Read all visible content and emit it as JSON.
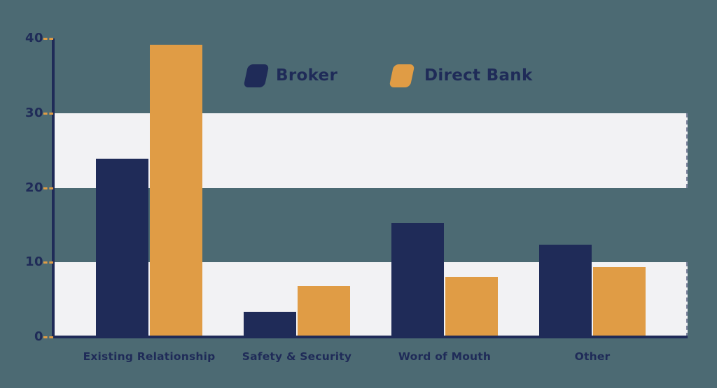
{
  "colors": {
    "background": "#4C6A73",
    "navy": "#1F2B58",
    "orange": "#E09C45",
    "stripe": "#F2F2F4",
    "label_text": "#1F2B58",
    "tick_dash": "#E09C45"
  },
  "legend": {
    "items": [
      {
        "label": "Broker",
        "color": "#1F2B58"
      },
      {
        "label": "Direct Bank",
        "color": "#E09C45"
      }
    ]
  },
  "chart_data": {
    "type": "bar",
    "title": "",
    "xlabel": "",
    "ylabel": "",
    "categories": [
      "Existing Relationship",
      "Safety & Security",
      "Word of Mouth",
      "Other"
    ],
    "series": [
      {
        "name": "Broker",
        "color": "#1F2B58",
        "values": [
          23.9,
          3.4,
          15.3,
          12.4
        ]
      },
      {
        "name": "Direct Bank",
        "color": "#E09C45",
        "values": [
          39.2,
          6.8,
          8.1,
          9.4
        ]
      }
    ],
    "ylim": [
      0,
      40
    ],
    "yticks": [
      0,
      10,
      20,
      30,
      40
    ],
    "ytick_labels": [
      "0",
      "10",
      "20",
      "30",
      "40"
    ],
    "stripe_bands": [
      [
        20,
        30
      ],
      [
        0,
        10
      ]
    ],
    "grid": "striped-horizontal-bands",
    "legend_position": "top-center"
  }
}
